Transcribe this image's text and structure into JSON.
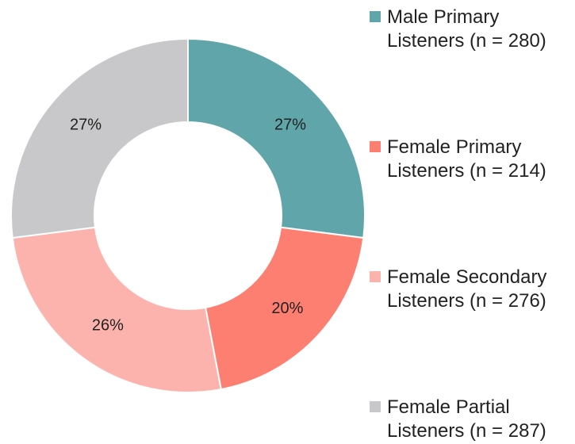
{
  "chart_data": {
    "type": "donut",
    "categories": [
      "Male Primary Listeners (n = 280)",
      "Female Primary Listeners (n = 214)",
      "Female Secondary Listeners (n = 276)",
      "Female Partial Listeners (n = 287)"
    ],
    "values": [
      27,
      20,
      26,
      27
    ],
    "value_labels": [
      "27%",
      "20%",
      "26%",
      "27%"
    ],
    "colors": [
      "#5fa5aa",
      "#fd7f72",
      "#fdb3ad",
      "#c8c8ca"
    ],
    "legend": "right"
  }
}
